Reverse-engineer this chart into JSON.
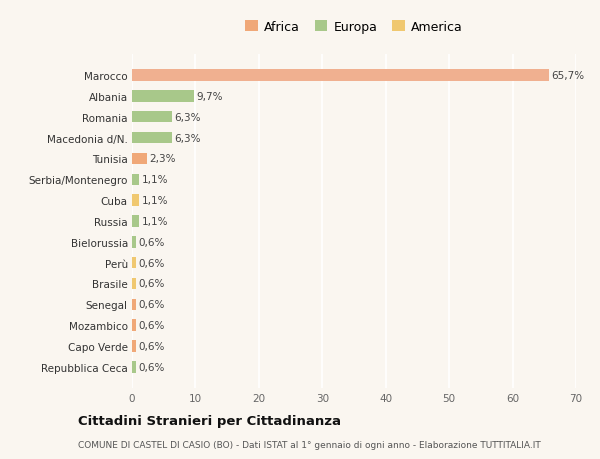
{
  "categories": [
    "Repubblica Ceca",
    "Capo Verde",
    "Mozambico",
    "Senegal",
    "Brasile",
    "Perù",
    "Bielorussia",
    "Russia",
    "Cuba",
    "Serbia/Montenegro",
    "Tunisia",
    "Macedonia d/N.",
    "Romania",
    "Albania",
    "Marocco"
  ],
  "values": [
    0.6,
    0.6,
    0.6,
    0.6,
    0.6,
    0.6,
    0.6,
    1.1,
    1.1,
    1.1,
    2.3,
    6.3,
    6.3,
    9.7,
    65.7
  ],
  "labels": [
    "0,6%",
    "0,6%",
    "0,6%",
    "0,6%",
    "0,6%",
    "0,6%",
    "0,6%",
    "1,1%",
    "1,1%",
    "1,1%",
    "2,3%",
    "6,3%",
    "6,3%",
    "9,7%",
    "65,7%"
  ],
  "colors": [
    "#a8c88a",
    "#f0a878",
    "#f0a878",
    "#f0a878",
    "#f0c870",
    "#f0c870",
    "#a8c88a",
    "#a8c88a",
    "#f0c870",
    "#a8c88a",
    "#f0a878",
    "#a8c88a",
    "#a8c88a",
    "#a8c88a",
    "#f0b090"
  ],
  "legend_labels": [
    "Africa",
    "Europa",
    "America"
  ],
  "legend_colors": [
    "#f0a878",
    "#a8c88a",
    "#f0c870"
  ],
  "title": "Cittadini Stranieri per Cittadinanza",
  "subtitle": "COMUNE DI CASTEL DI CASIO (BO) - Dati ISTAT al 1° gennaio di ogni anno - Elaborazione TUTTITALIA.IT",
  "xlim": [
    0,
    70
  ],
  "xticks": [
    0,
    10,
    20,
    30,
    40,
    50,
    60,
    70
  ],
  "background_color": "#faf6f0",
  "grid_color": "#ffffff",
  "bar_height": 0.55
}
